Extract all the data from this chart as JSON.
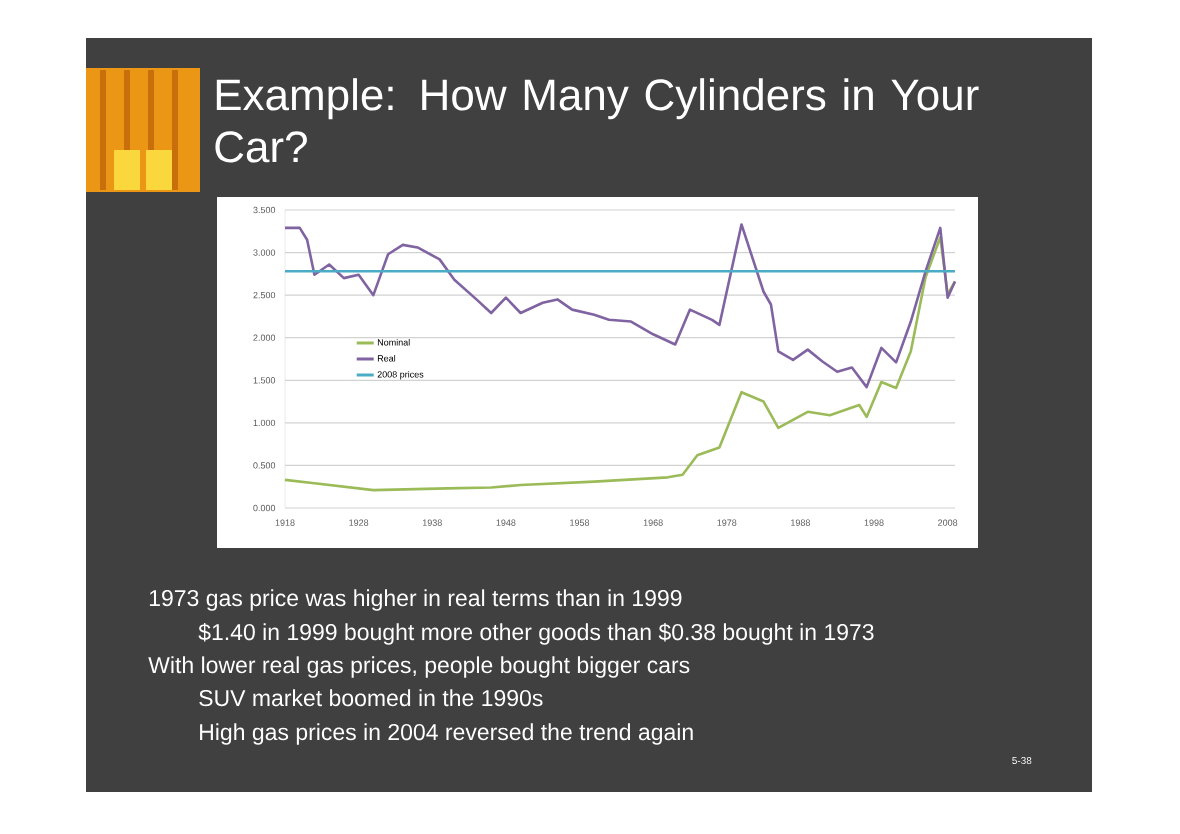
{
  "chart_data": {
    "type": "line",
    "title": "Example:  How Many Cylinders in Your Car?",
    "xlim": [
      1918,
      2009
    ],
    "xticks": [
      1918,
      1928,
      1938,
      1948,
      1958,
      1968,
      1978,
      1988,
      1998,
      2008
    ],
    "ylim": [
      0,
      3.5
    ],
    "yticks": [
      {
        "value": 0,
        "label": "0.000"
      },
      {
        "value": 0.5,
        "label": "0.500"
      },
      {
        "value": 1,
        "label": "1.000"
      },
      {
        "value": 1.5,
        "label": "1.500"
      },
      {
        "value": 2,
        "label": "2.000"
      },
      {
        "value": 2.5,
        "label": "2.500"
      },
      {
        "value": 3,
        "label": "3.000"
      },
      {
        "value": 3.5,
        "label": "3.500"
      }
    ],
    "grid": "y",
    "legend": "left",
    "marker": "none",
    "series": [
      {
        "name": "Nominal",
        "color": "#9bbb59",
        "x": [
          1918,
          1922,
          1930,
          1940,
          1946,
          1950,
          1960,
          1970,
          1972,
          1974,
          1977,
          1980,
          1983,
          1985,
          1989,
          1992,
          1996,
          1997,
          1999,
          2001,
          2003,
          2005,
          2007,
          2008,
          2009
        ],
        "values": [
          0.33,
          0.29,
          0.21,
          0.23,
          0.24,
          0.27,
          0.31,
          0.36,
          0.39,
          0.62,
          0.71,
          1.36,
          1.25,
          0.94,
          1.13,
          1.09,
          1.21,
          1.07,
          1.48,
          1.41,
          1.84,
          2.71,
          3.18,
          2.51,
          2.66
        ]
      },
      {
        "name": "Real",
        "color": "#8064a2",
        "x": [
          1918,
          1920,
          1921,
          1922,
          1924,
          1926,
          1928,
          1930,
          1932,
          1934,
          1936,
          1939,
          1941,
          1944,
          1946,
          1948,
          1950,
          1953,
          1955,
          1957,
          1960,
          1962,
          1965,
          1968,
          1971,
          1973,
          1976,
          1977,
          1980,
          1983,
          1984,
          1985,
          1987,
          1989,
          1991,
          1993,
          1995,
          1997,
          1999,
          2001,
          2003,
          2005,
          2007,
          2008,
          2009
        ],
        "values": [
          3.29,
          3.29,
          3.15,
          2.74,
          2.86,
          2.7,
          2.74,
          2.5,
          2.98,
          3.09,
          3.06,
          2.92,
          2.68,
          2.45,
          2.29,
          2.47,
          2.29,
          2.41,
          2.45,
          2.33,
          2.27,
          2.21,
          2.19,
          2.04,
          1.92,
          2.33,
          2.21,
          2.15,
          3.33,
          2.54,
          2.39,
          1.84,
          1.74,
          1.86,
          1.72,
          1.6,
          1.65,
          1.42,
          1.88,
          1.71,
          2.19,
          2.78,
          3.29,
          2.47,
          2.66
        ]
      },
      {
        "name": "2008 prices",
        "color": "#4bacc6",
        "x": [
          1918,
          2009
        ],
        "values": [
          2.78,
          2.78
        ]
      }
    ],
    "annotations": [
      "1973 gas price was higher in real terms than in 1999",
      "$1.40 in 1999 bought more other goods than $0.38 bought in 1973",
      "With lower real gas prices, people bought bigger cars",
      "SUV market boomed in the 1990s",
      "High gas prices in 2004 reversed the trend again",
      "5-38"
    ]
  }
}
